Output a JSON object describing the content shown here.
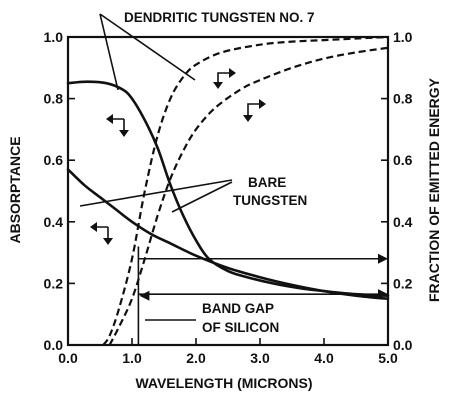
{
  "chart_data": {
    "type": "line",
    "title": "",
    "xlabel": "WAVELENGTH (MICRONS)",
    "ylabel_left": "ABSORPTANCE",
    "ylabel_right": "FRACTION OF EMITTED ENERGY",
    "xlim": [
      0,
      5
    ],
    "ylim": [
      0,
      1
    ],
    "x_ticks": [
      "0.0",
      "1.0",
      "2.0",
      "3.0",
      "4.0",
      "5.0"
    ],
    "y_ticks": [
      "0.0",
      "0.2",
      "0.4",
      "0.6",
      "0.8",
      "1.0"
    ],
    "y2_ticks": [
      "0.0",
      "0.2",
      "0.4",
      "0.6",
      "0.8",
      "1.0"
    ],
    "grid": false,
    "series": [
      {
        "name": "DENDRITIC TUNGSTEN NO. 7",
        "axis": "left",
        "style": "solid",
        "x": [
          0.0,
          0.3,
          0.6,
          0.85,
          1.0,
          1.2,
          1.4,
          1.6,
          1.8,
          2.0,
          2.2,
          2.5,
          2.8,
          3.2,
          3.6,
          4.0,
          4.5,
          5.0
        ],
        "y": [
          0.85,
          0.855,
          0.85,
          0.83,
          0.8,
          0.73,
          0.64,
          0.52,
          0.42,
          0.34,
          0.28,
          0.24,
          0.22,
          0.2,
          0.185,
          0.175,
          0.165,
          0.16
        ]
      },
      {
        "name": "BARE TUNGSTEN",
        "axis": "left",
        "style": "solid",
        "x": [
          0.0,
          0.25,
          0.5,
          0.75,
          1.0,
          1.3,
          1.6,
          2.0,
          2.5,
          3.0,
          3.5,
          4.0,
          4.5,
          5.0
        ],
        "y": [
          0.57,
          0.52,
          0.48,
          0.44,
          0.4,
          0.36,
          0.33,
          0.29,
          0.25,
          0.22,
          0.195,
          0.175,
          0.16,
          0.15
        ]
      },
      {
        "name": "",
        "axis": "right",
        "style": "dashed",
        "x": [
          0.55,
          0.65,
          0.8,
          1.0,
          1.2,
          1.4,
          1.6,
          1.8,
          2.0,
          2.4,
          3.0,
          3.5,
          4.0,
          4.5,
          5.0
        ],
        "y": [
          0.0,
          0.03,
          0.12,
          0.28,
          0.5,
          0.68,
          0.8,
          0.87,
          0.91,
          0.95,
          0.975,
          0.985,
          0.99,
          0.995,
          1.0
        ]
      },
      {
        "name": "",
        "axis": "right",
        "style": "dashed",
        "x": [
          0.65,
          0.8,
          1.0,
          1.2,
          1.4,
          1.6,
          1.8,
          2.0,
          2.3,
          2.7,
          3.0,
          3.5,
          4.0,
          4.5,
          5.0
        ],
        "y": [
          0.0,
          0.06,
          0.15,
          0.28,
          0.42,
          0.54,
          0.63,
          0.7,
          0.77,
          0.83,
          0.86,
          0.9,
          0.93,
          0.95,
          0.965
        ]
      }
    ],
    "annotations": [
      {
        "text": "DENDRITIC TUNGSTEN NO. 7"
      },
      {
        "text": "BARE TUNGSTEN"
      },
      {
        "text": "BAND GAP OF SILICON"
      }
    ],
    "band_gap_x": 1.1,
    "horizontal_arrows": [
      {
        "y": 0.28,
        "x_from": 1.1,
        "x_to": 5.0
      },
      {
        "y": 0.165,
        "x_from": 1.1,
        "x_to": 5.0
      }
    ]
  }
}
